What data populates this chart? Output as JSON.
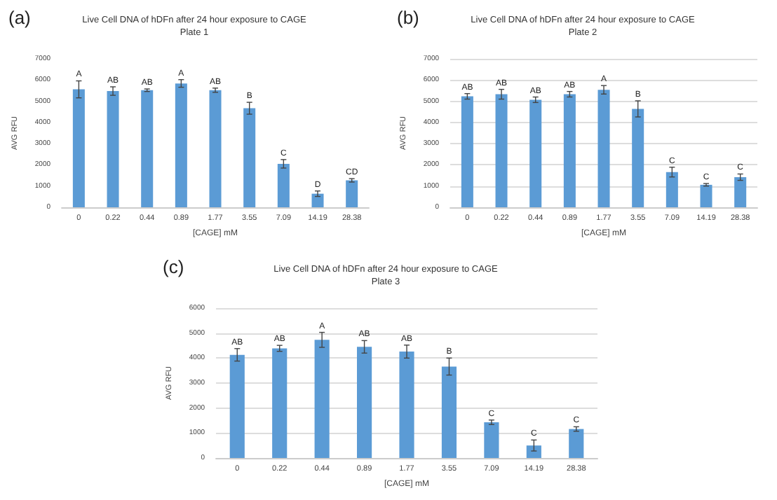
{
  "chart_data": [
    {
      "type": "bar",
      "title": "Live Cell DNA of hDFn after 24 hour exposure to CAGE",
      "subtitle": "Plate 1",
      "xlabel": "[CAGE] mM",
      "ylabel": "AVG RFU",
      "categories": [
        "0",
        "0.22",
        "0.44",
        "0.89",
        "1.77",
        "3.55",
        "7.09",
        "14.19",
        "28.38"
      ],
      "values": [
        5560,
        5480,
        5520,
        5840,
        5520,
        4670,
        2050,
        640,
        1270
      ],
      "errors": [
        400,
        200,
        60,
        180,
        100,
        280,
        200,
        130,
        80
      ],
      "color": "#5b9bd5",
      "ylim": [
        0,
        7000
      ],
      "yticks": [
        0,
        1000,
        2000,
        3000,
        4000,
        5000,
        6000,
        7000
      ],
      "grid": false,
      "annotations": [
        "(a)",
        {
          "text": "A",
          "x": "0",
          "y": 5960
        },
        {
          "text": "AB",
          "x": "0.22",
          "y": 5680
        },
        {
          "text": "AB",
          "x": "0.44",
          "y": 5580
        },
        {
          "text": "A",
          "x": "0.89",
          "y": 6020
        },
        {
          "text": "AB",
          "x": "1.77",
          "y": 5620
        },
        {
          "text": "B",
          "x": "3.55",
          "y": 4950
        },
        {
          "text": "C",
          "x": "7.09",
          "y": 2250
        },
        {
          "text": "D",
          "x": "14.19",
          "y": 770
        },
        {
          "text": "CD",
          "x": "28.38",
          "y": 1350
        }
      ]
    },
    {
      "type": "bar",
      "title": "Live Cell DNA of hDFn after 24 hour exposure to CAGE",
      "subtitle": "Plate 2",
      "xlabel": "[CAGE] mM",
      "ylabel": "AVG RFU",
      "categories": [
        "0",
        "0.22",
        "0.44",
        "0.89",
        "1.77",
        "3.55",
        "7.09",
        "14.19",
        "28.38"
      ],
      "values": [
        5230,
        5330,
        5070,
        5330,
        5540,
        4640,
        1660,
        1060,
        1420
      ],
      "errors": [
        130,
        230,
        130,
        130,
        200,
        380,
        230,
        60,
        150
      ],
      "color": "#5b9bd5",
      "ylim": [
        0,
        7000
      ],
      "yticks": [
        0,
        1000,
        2000,
        3000,
        4000,
        5000,
        6000,
        7000
      ],
      "grid": "y",
      "annotations": [
        "(b)",
        {
          "text": "AB",
          "x": "0",
          "y": 5360
        },
        {
          "text": "AB",
          "x": "0.22",
          "y": 5560
        },
        {
          "text": "AB",
          "x": "0.44",
          "y": 5200
        },
        {
          "text": "AB",
          "x": "0.89",
          "y": 5460
        },
        {
          "text": "A",
          "x": "1.77",
          "y": 5740
        },
        {
          "text": "B",
          "x": "3.55",
          "y": 5020
        },
        {
          "text": "C",
          "x": "7.09",
          "y": 1890
        },
        {
          "text": "C",
          "x": "14.19",
          "y": 1120
        },
        {
          "text": "C",
          "x": "28.38",
          "y": 1570
        }
      ]
    },
    {
      "type": "bar",
      "title": "Live Cell DNA of hDFn after 24 hour exposure to CAGE",
      "subtitle": "Plate 3",
      "xlabel": "[CAGE] mM",
      "ylabel": "AVG RFU",
      "categories": [
        "0",
        "0.22",
        "0.44",
        "0.89",
        "1.77",
        "3.55",
        "7.09",
        "14.19",
        "28.38"
      ],
      "values": [
        4130,
        4390,
        4730,
        4450,
        4260,
        3660,
        1430,
        500,
        1160
      ],
      "errors": [
        250,
        120,
        300,
        250,
        260,
        340,
        90,
        220,
        90
      ],
      "color": "#5b9bd5",
      "ylim": [
        0,
        6000
      ],
      "yticks": [
        0,
        1000,
        2000,
        3000,
        4000,
        5000,
        6000
      ],
      "grid": "y",
      "annotations": [
        "(c)",
        {
          "text": "AB",
          "x": "0",
          "y": 4380
        },
        {
          "text": "AB",
          "x": "0.22",
          "y": 4510
        },
        {
          "text": "A",
          "x": "0.44",
          "y": 5030
        },
        {
          "text": "AB",
          "x": "0.89",
          "y": 4700
        },
        {
          "text": "AB",
          "x": "1.77",
          "y": 4520
        },
        {
          "text": "B",
          "x": "3.55",
          "y": 4000
        },
        {
          "text": "C",
          "x": "7.09",
          "y": 1520
        },
        {
          "text": "C",
          "x": "14.19",
          "y": 720
        },
        {
          "text": "C",
          "x": "28.38",
          "y": 1250
        }
      ]
    }
  ]
}
